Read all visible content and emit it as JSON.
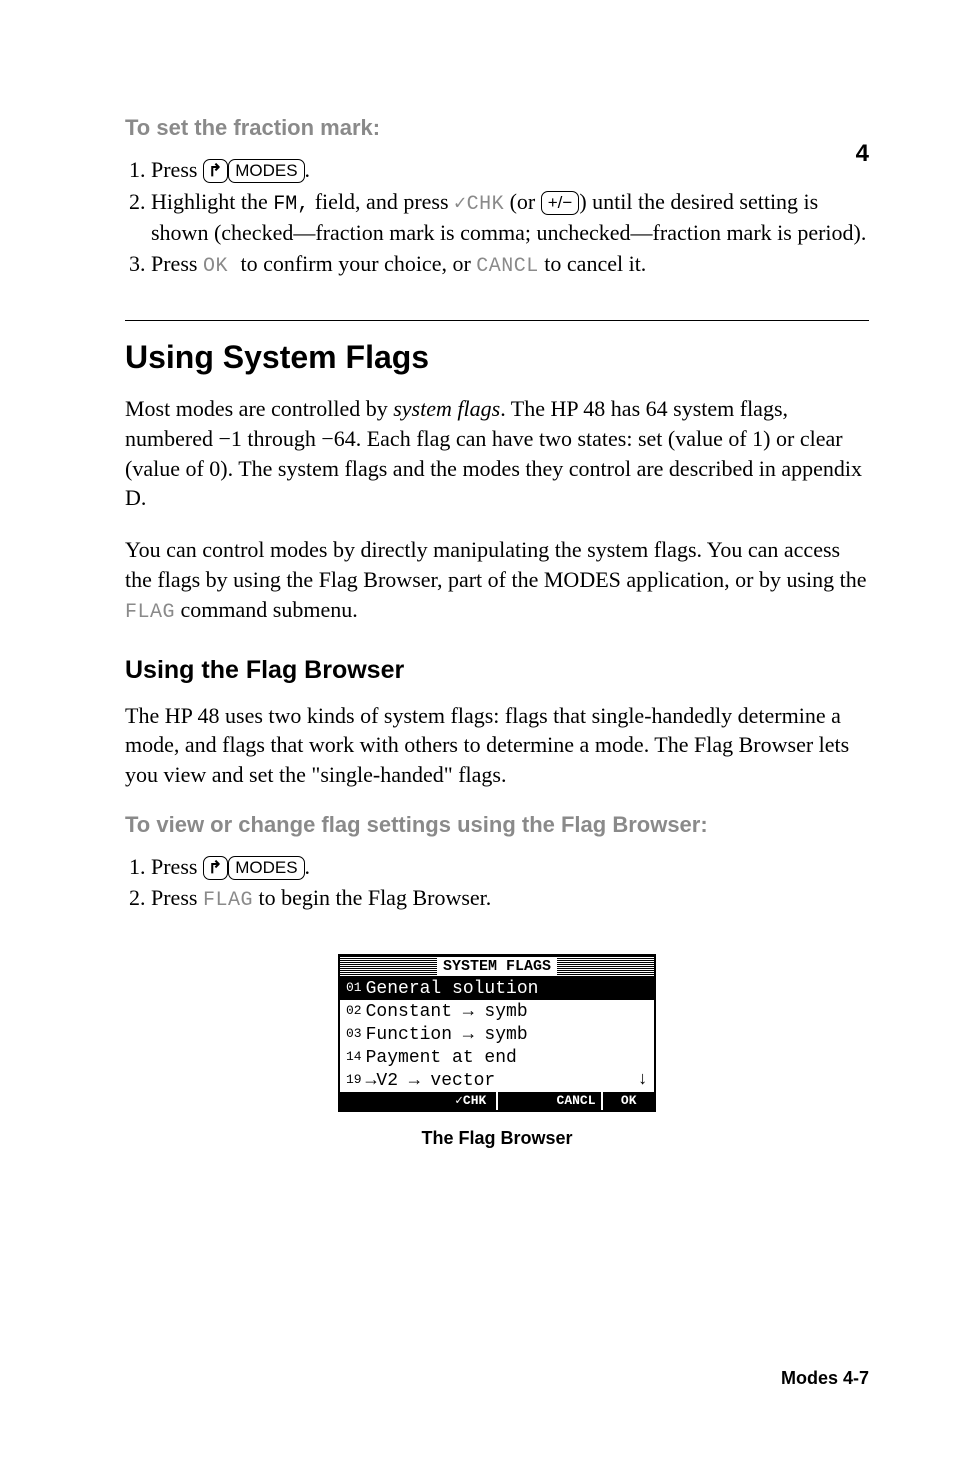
{
  "page_number": "4",
  "proc1": {
    "heading": "To set the fraction mark:",
    "steps": [
      {
        "pre": "Press ",
        "keys_html": "<span class='shiftkey'>↱</span><span class='key'>MODES</span>",
        "post": "."
      },
      {
        "pre": "Highlight the ",
        "code1": "FM,",
        "mid1": " field, and press ",
        "soft1": "✓CHK",
        "mid2": " (or ",
        "keys_html": "<span class='key'>+/−</span>",
        "mid3": ") until the desired setting is shown (checked—fraction mark is comma; unchecked—fraction mark is period)."
      },
      {
        "pre": "Press ",
        "soft1": " OK ",
        "mid1": " to confirm your choice, or ",
        "soft2": "CANCL",
        "post": " to cancel it."
      }
    ]
  },
  "section": {
    "title": "Using System Flags",
    "para1": "Most modes are controlled by ",
    "para1_em": "system flags",
    "para1_b": ". The HP 48 has 64 system flags, numbered −1 through −64. Each flag can have two states: set (value of 1) or clear (value of 0). The system flags and the modes they control are described in appendix D.",
    "para2_a": "You can control modes by directly manipulating the system flags. You can access the flags by using the Flag Browser, part of the MODES application, or by using the ",
    "para2_soft": "FLAG",
    "para2_b": " command submenu."
  },
  "subsection": {
    "title": "Using the Flag Browser",
    "para": "The HP 48 uses two kinds of system flags: flags that single-handedly determine a mode, and flags that work with others to determine a mode. The Flag Browser lets you view and set the \"single-handed\" flags."
  },
  "proc2": {
    "heading": "To view or change flag settings using the Flag Browser:",
    "steps": [
      {
        "pre": "Press ",
        "keys_html": "<span class='shiftkey'>↱</span><span class='key'>MODES</span>",
        "post": "."
      },
      {
        "pre": "Press ",
        "soft1": "FLAG",
        "post": " to begin the Flag Browser."
      }
    ]
  },
  "calc": {
    "title": "SYSTEM FLAGS",
    "rows": [
      {
        "num": "01",
        "text": "General solution",
        "selected": true
      },
      {
        "num": "02",
        "text": "Constant → symb",
        "selected": false
      },
      {
        "num": "03",
        "text": "Function → symb",
        "selected": false
      },
      {
        "num": "14",
        "text": "Payment at end",
        "selected": false
      },
      {
        "num": "19",
        "text": "→V2 → vector",
        "selected": false,
        "arrow": "↓"
      }
    ],
    "menu": [
      "",
      "",
      "✓CHK",
      "",
      "CANCL",
      "OK"
    ],
    "caption": "The Flag Browser"
  },
  "footer": "Modes  4-7",
  "colors": {
    "text": "#000000",
    "muted": "#8a8a8a",
    "bg": "#ffffff"
  }
}
